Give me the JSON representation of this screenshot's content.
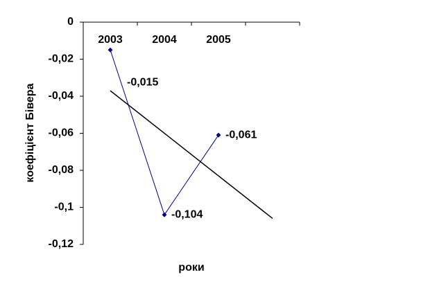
{
  "chart_data": {
    "type": "line",
    "categories": [
      "2003",
      "2004",
      "2005"
    ],
    "series": [
      {
        "color": "#000080",
        "values": [
          -0.015,
          -0.104,
          -0.061
        ],
        "value_labels": [
          "-0,015",
          "-0,104",
          "-0,061"
        ]
      }
    ],
    "trendline": {
      "type": "linear",
      "color": "#000000",
      "forward": 1
    },
    "ylim": [
      -0.12,
      0
    ],
    "yticks": [
      0,
      {
        "value": -0.02,
        "label": "-0,02"
      },
      {
        "value": -0.04,
        "label": "-0,04"
      },
      {
        "value": -0.06,
        "label": "-0,06"
      },
      {
        "value": -0.08,
        "label": "-0,08"
      },
      {
        "value": -0.1,
        "label": "-0,1"
      },
      {
        "value": -0.12,
        "label": "-0,12"
      }
    ],
    "ylabel": "коефіцієнт Бівера",
    "xlabel": "роки"
  }
}
